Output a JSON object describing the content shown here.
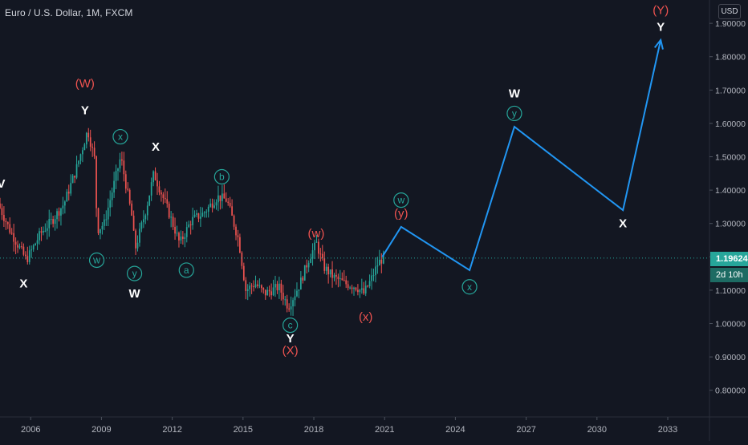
{
  "header": {
    "symbol_line": "Euro / U.S. Dollar, 1M, FXCM",
    "currency_badge": "USD",
    "last_price": "1.19624",
    "countdown": "2d 10h"
  },
  "colors": {
    "background": "#131722",
    "up_candle": "#26a69a",
    "down_candle": "#ef5350",
    "projection": "#2196f3",
    "cyan_label": "#26a69a",
    "red_label": "#ef5350",
    "white_label": "#ffffff",
    "axis_text": "#b2b5be"
  },
  "chart_data": {
    "type": "candlestick",
    "x_axis": {
      "range_years": [
        2004.7,
        2034.7
      ],
      "ticks": [
        2006,
        2009,
        2012,
        2015,
        2018,
        2021,
        2024,
        2027,
        2030,
        2033
      ],
      "tick_labels": [
        "2006",
        "2009",
        "2012",
        "2015",
        "2018",
        "2021",
        "2024",
        "2027",
        "2030",
        "2033"
      ]
    },
    "y_axis": {
      "range": [
        0.72,
        1.97
      ],
      "ticks": [
        1.9,
        1.8,
        1.7,
        1.6,
        1.5,
        1.4,
        1.3,
        1.2,
        1.1,
        1.0,
        0.9,
        0.8
      ],
      "tick_labels": [
        "1.90000",
        "1.80000",
        "1.70000",
        "1.60000",
        "1.50000",
        "1.40000",
        "1.30000",
        "1.20000",
        "1.10000",
        "1.00000",
        "0.90000",
        "0.80000"
      ],
      "side": "right"
    },
    "price_anchors": [
      [
        2004.7,
        1.36
      ],
      [
        2005.2,
        1.28
      ],
      [
        2005.9,
        1.19
      ],
      [
        2006.5,
        1.27
      ],
      [
        2007.0,
        1.31
      ],
      [
        2007.5,
        1.36
      ],
      [
        2008.0,
        1.46
      ],
      [
        2008.5,
        1.58
      ],
      [
        2008.8,
        1.49
      ],
      [
        2008.9,
        1.28
      ],
      [
        2009.2,
        1.3
      ],
      [
        2009.9,
        1.5
      ],
      [
        2010.4,
        1.31
      ],
      [
        2010.5,
        1.22
      ],
      [
        2011.0,
        1.35
      ],
      [
        2011.3,
        1.45
      ],
      [
        2011.9,
        1.34
      ],
      [
        2012.4,
        1.24
      ],
      [
        2012.9,
        1.31
      ],
      [
        2013.4,
        1.33
      ],
      [
        2014.0,
        1.38
      ],
      [
        2014.4,
        1.37
      ],
      [
        2014.9,
        1.25
      ],
      [
        2015.2,
        1.1
      ],
      [
        2015.6,
        1.12
      ],
      [
        2016.0,
        1.09
      ],
      [
        2016.6,
        1.11
      ],
      [
        2017.0,
        1.05
      ],
      [
        2017.5,
        1.12
      ],
      [
        2017.9,
        1.2
      ],
      [
        2018.2,
        1.24
      ],
      [
        2018.5,
        1.17
      ],
      [
        2018.9,
        1.14
      ],
      [
        2019.4,
        1.12
      ],
      [
        2019.9,
        1.11
      ],
      [
        2020.2,
        1.09
      ],
      [
        2020.5,
        1.13
      ],
      [
        2020.8,
        1.18
      ],
      [
        2021.0,
        1.196
      ]
    ],
    "last_price": 1.19624,
    "projection_path": [
      [
        2020.9,
        1.2
      ],
      [
        2021.7,
        1.29
      ],
      [
        2024.6,
        1.16
      ],
      [
        2026.5,
        1.59
      ],
      [
        2031.1,
        1.34
      ],
      [
        2032.7,
        1.85
      ]
    ],
    "annotations": [
      {
        "text": "V",
        "x": 2004.75,
        "y": 1.42,
        "color": "white"
      },
      {
        "text": "X",
        "x": 2005.7,
        "y": 1.12,
        "color": "white"
      },
      {
        "text": "(W)",
        "x": 2008.3,
        "y": 1.72,
        "color": "red"
      },
      {
        "text": "Y",
        "x": 2008.3,
        "y": 1.64,
        "color": "white"
      },
      {
        "text": "x",
        "x": 2009.8,
        "y": 1.56,
        "color": "cyan",
        "circled": true
      },
      {
        "text": "X",
        "x": 2011.3,
        "y": 1.53,
        "color": "white"
      },
      {
        "text": "w",
        "x": 2008.8,
        "y": 1.19,
        "color": "cyan",
        "circled": true
      },
      {
        "text": "y",
        "x": 2010.4,
        "y": 1.15,
        "color": "cyan",
        "circled": true
      },
      {
        "text": "W",
        "x": 2010.4,
        "y": 1.09,
        "color": "white"
      },
      {
        "text": "b",
        "x": 2014.1,
        "y": 1.44,
        "color": "cyan",
        "circled": true
      },
      {
        "text": "a",
        "x": 2012.6,
        "y": 1.16,
        "color": "cyan",
        "circled": true
      },
      {
        "text": "(w)",
        "x": 2018.1,
        "y": 1.27,
        "color": "red"
      },
      {
        "text": "c",
        "x": 2017.0,
        "y": 0.995,
        "color": "cyan",
        "circled": true
      },
      {
        "text": "Y",
        "x": 2017.0,
        "y": 0.955,
        "color": "white"
      },
      {
        "text": "(X)",
        "x": 2017.0,
        "y": 0.92,
        "color": "red"
      },
      {
        "text": "w",
        "x": 2021.7,
        "y": 1.37,
        "color": "cyan",
        "circled": true
      },
      {
        "text": "(y)",
        "x": 2021.7,
        "y": 1.33,
        "color": "red"
      },
      {
        "text": "(x)",
        "x": 2020.2,
        "y": 1.02,
        "color": "red"
      },
      {
        "text": "x",
        "x": 2024.6,
        "y": 1.11,
        "color": "cyan",
        "circled": true
      },
      {
        "text": "W",
        "x": 2026.5,
        "y": 1.69,
        "color": "white"
      },
      {
        "text": "y",
        "x": 2026.5,
        "y": 1.63,
        "color": "cyan",
        "circled": true
      },
      {
        "text": "X",
        "x": 2031.1,
        "y": 1.3,
        "color": "white"
      },
      {
        "text": "(Y)",
        "x": 2032.7,
        "y": 1.94,
        "color": "red"
      },
      {
        "text": "Y",
        "x": 2032.7,
        "y": 1.89,
        "color": "white"
      }
    ],
    "grid": false,
    "legend": "none"
  }
}
